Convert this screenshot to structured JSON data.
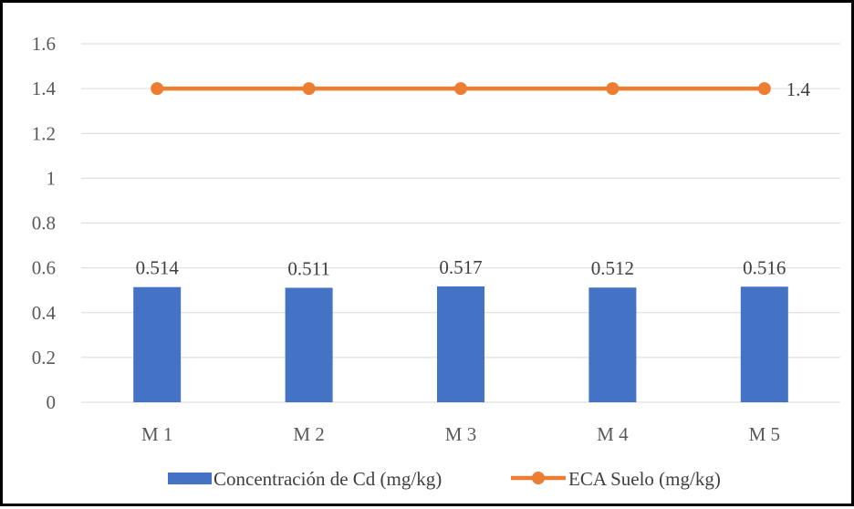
{
  "chart_data": {
    "type": "bar",
    "categories": [
      "M 1",
      "M 2",
      "M 3",
      "M 4",
      "M 5"
    ],
    "series": [
      {
        "name": "Concentración de Cd (mg/kg)",
        "type": "bar",
        "color": "#4472C4",
        "values": [
          0.514,
          0.511,
          0.517,
          0.512,
          0.516
        ],
        "data_labels": [
          "0.514",
          "0.511",
          "0.517",
          "0.512",
          "0.516"
        ]
      },
      {
        "name": "ECA Suelo (mg/kg)",
        "type": "line",
        "color": "#ED7D31",
        "values": [
          1.4,
          1.4,
          1.4,
          1.4,
          1.4
        ],
        "end_label": "1.4"
      }
    ],
    "yticks": [
      "0",
      "0.2",
      "0.4",
      "0.6",
      "0.8",
      "1",
      "1.2",
      "1.4",
      "1.6"
    ],
    "ylim": [
      0,
      1.6
    ],
    "grid": true,
    "legend_position": "bottom",
    "gridline_color": "#D9D9D9"
  }
}
